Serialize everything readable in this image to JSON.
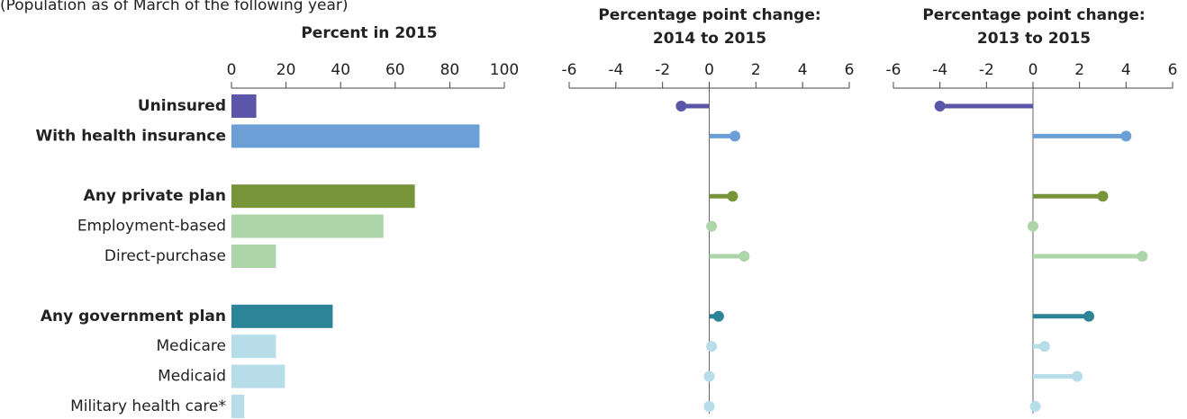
{
  "chart_data": [
    {
      "type": "bar",
      "subtitle": "(Population as of March of the following year)",
      "title": "Percent in 2015",
      "categories": [
        "Uninsured",
        "With health insurance",
        null,
        "Any private plan",
        "Employment-based",
        "Direct-purchase",
        null,
        "Any government plan",
        "Medicare",
        "Medicaid",
        "Military health care*"
      ],
      "bold": [
        true,
        true,
        null,
        true,
        false,
        false,
        null,
        true,
        false,
        false,
        false
      ],
      "colors": [
        "#5b56a8",
        "#6c9fd5",
        null,
        "#789438",
        "#aed5aa",
        "#aed5aa",
        null,
        "#2c8597",
        "#b7dde9",
        "#b7dde9",
        "#b7dde9"
      ],
      "values": [
        9.1,
        90.9,
        null,
        67.2,
        55.7,
        16.3,
        null,
        37.1,
        16.3,
        19.6,
        4.7
      ],
      "xlim": [
        0,
        100
      ],
      "xticks": [
        0,
        20,
        40,
        60,
        80,
        100
      ]
    },
    {
      "type": "lollipop",
      "title": "Percentage point change:\n2014 to 2015",
      "values": [
        -1.2,
        1.1,
        null,
        1.0,
        0.1,
        1.5,
        null,
        0.4,
        0.1,
        0.0,
        0.0
      ],
      "xlim": [
        -6,
        6
      ],
      "xticks": [
        -6,
        -4,
        -2,
        0,
        2,
        4,
        6
      ]
    },
    {
      "type": "lollipop",
      "title": "Percentage point change:\n2013 to 2015",
      "values": [
        -4.0,
        4.0,
        null,
        3.0,
        0.0,
        4.7,
        null,
        2.4,
        0.5,
        1.9,
        0.1
      ],
      "xlim": [
        -6,
        6
      ],
      "xticks": [
        -6,
        -4,
        -2,
        0,
        2,
        4,
        6
      ]
    }
  ]
}
